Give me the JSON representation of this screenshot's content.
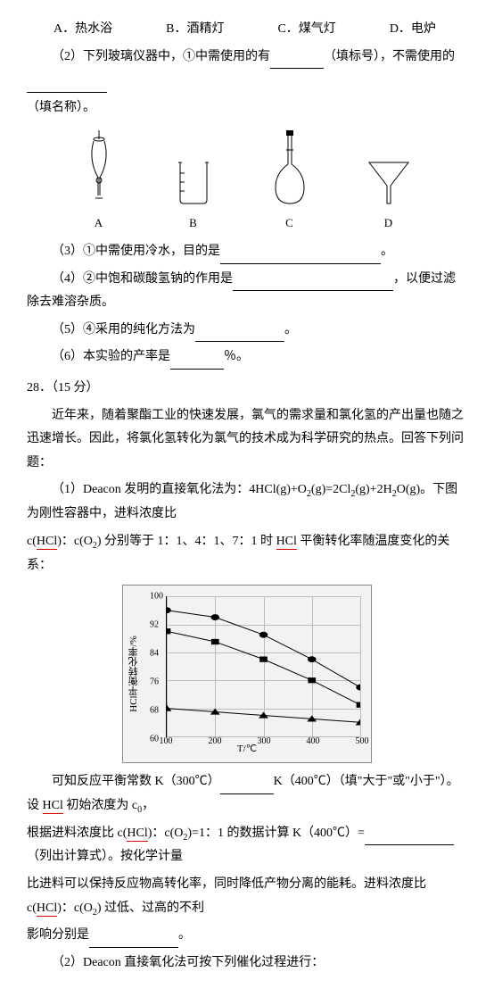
{
  "options": {
    "a": "A．热水浴",
    "b": "B．酒精灯",
    "c": "C．煤气灯",
    "d": "D．电炉"
  },
  "q2": {
    "prefix": "（2）下列玻璃仪器中，①中需使用的有",
    "mid": "（填标号），不需使用的",
    "tail": "（填名称）。"
  },
  "glass_labels": {
    "a": "A",
    "b": "B",
    "c": "C",
    "d": "D"
  },
  "q3": "（3）①中需使用冷水，目的是",
  "q4": {
    "a": "（4）②中饱和碳酸氢钠的作用是",
    "b": "，以便过滤除去难溶杂质。"
  },
  "q5": "（5）④采用的纯化方法为",
  "q6": {
    "a": "（6）本实验的产率是",
    "b": "％。"
  },
  "num28": "28．（15 分）",
  "intro": "近年来，随着聚酯工业的快速发展，氯气的需求量和氯化氢的产出量也随之迅速增长。因此，将氯化氢转化为氯气的技术成为科学研究的热点。回答下列问题：",
  "d1": {
    "a": "（1）Deacon 发明的直接氧化法为：4HCl(g)+O",
    "b": "(g)=2Cl",
    "c": "(g)+2H",
    "d": "O(g)。下图为刚性容器中，进料浓度比"
  },
  "d1b": {
    "a": "c(",
    "hcl": "HCl",
    "b": ")：c(O",
    "c": ") 分别等于 1：1、4：1、7：1 时 ",
    "d": " 平衡转化率随温度变化的关系："
  },
  "chart": {
    "ylabel": "HCl平衡转化率/%",
    "xlabel": "T/℃",
    "ymin": 60,
    "ymax": 100,
    "yticks": [
      60,
      68,
      76,
      84,
      92,
      100
    ],
    "xticks": [
      100,
      200,
      300,
      400,
      500
    ],
    "series": [
      {
        "marker": "circle",
        "pts": [
          [
            0,
            96
          ],
          [
            25,
            94
          ],
          [
            50,
            89
          ],
          [
            75,
            82
          ],
          [
            100,
            74
          ]
        ]
      },
      {
        "marker": "square",
        "pts": [
          [
            0,
            90
          ],
          [
            25,
            87
          ],
          [
            50,
            82
          ],
          [
            75,
            76
          ],
          [
            100,
            69
          ]
        ]
      },
      {
        "marker": "triangle",
        "pts": [
          [
            0,
            68
          ],
          [
            25,
            67
          ],
          [
            50,
            66
          ],
          [
            75,
            65
          ],
          [
            100,
            64
          ]
        ]
      }
    ],
    "stroke": "#000",
    "fill": "#000"
  },
  "conc1": {
    "a": "可知反应平衡常数 K（300℃）",
    "b": "K（400℃）（填\"大于\"或\"小于\"）。设 ",
    "hcl": "HCl",
    "c": " 初始浓度为 c",
    "d": "，"
  },
  "conc2": {
    "a": "根据进料浓度比 c(",
    "hcl": "HCl",
    "b": ")：c(O",
    "c": ")=1：1 的数据计算 K（400℃）=",
    "d": "（列出计算式）。按化学计量"
  },
  "conc3": {
    "a": "比进料可以保持反应物高转化率，同时降低产物分离的能耗。进料浓度比 c(",
    "hcl": "HCl",
    "b": ")：c(O",
    "c": ") 过低、过高的不利"
  },
  "conc4": {
    "a": "影响分别是",
    "b": "。"
  },
  "d2": "（2）Deacon 直接氧化法可按下列催化过程进行："
}
